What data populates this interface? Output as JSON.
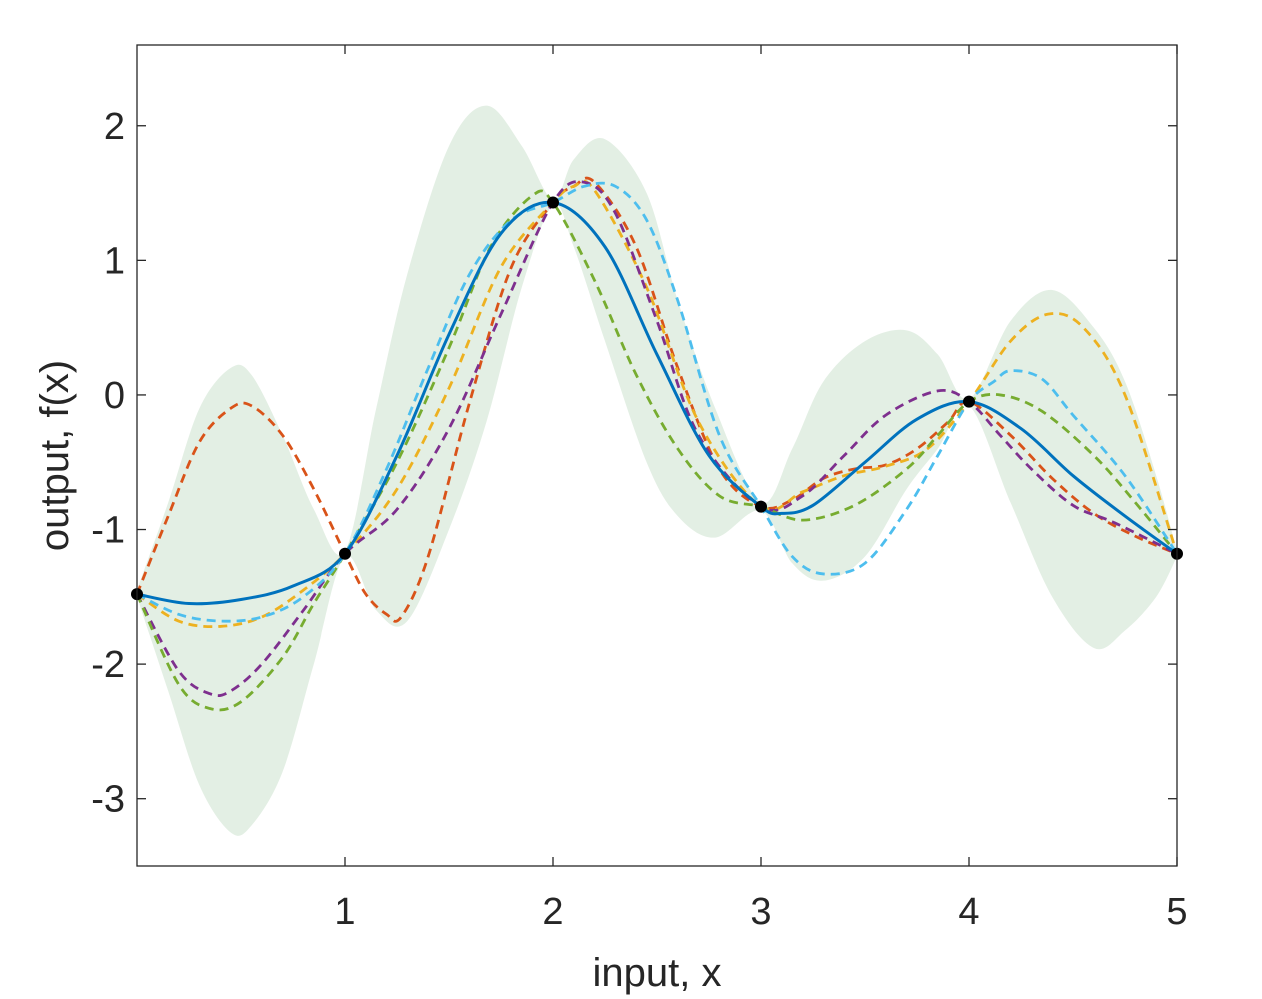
{
  "chart_data": {
    "type": "line",
    "title": "",
    "xlabel": "input, x",
    "ylabel": "output, f(x)",
    "xlim": [
      0,
      5
    ],
    "ylim": [
      -3.5,
      2.6
    ],
    "x_ticks": [
      1,
      2,
      3,
      4,
      5
    ],
    "y_ticks": [
      2,
      1,
      0,
      -1,
      -2,
      -3
    ],
    "grid": false,
    "legend": "none",
    "colors": {
      "band": "#e3efe4",
      "mean": "#0072bd",
      "sample_1": "#d95319",
      "sample_2": "#edb120",
      "sample_3": "#7e2f8e",
      "sample_4": "#77ac30",
      "sample_5": "#4dbeee",
      "observations": "#000000",
      "axes": "#262626"
    },
    "observations": {
      "x": [
        0,
        1,
        2,
        3,
        4,
        5
      ],
      "y": [
        -1.48,
        -1.18,
        1.43,
        -0.83,
        -0.05,
        -1.18
      ]
    },
    "confidence_band": {
      "x": [
        0,
        0.15,
        0.3,
        0.45,
        0.55,
        0.7,
        0.85,
        1.0,
        1.15,
        1.3,
        1.5,
        1.68,
        1.85,
        2.0,
        2.1,
        2.25,
        2.45,
        2.6,
        2.78,
        3.0,
        3.15,
        3.3,
        3.5,
        3.7,
        3.85,
        4.0,
        4.2,
        4.4,
        4.6,
        4.75,
        4.9,
        5.0
      ],
      "upper": [
        -1.45,
        -0.8,
        -0.1,
        0.2,
        0.15,
        -0.3,
        -0.85,
        -1.16,
        -0.1,
        0.9,
        1.85,
        2.15,
        1.85,
        1.45,
        1.75,
        1.9,
        1.5,
        0.7,
        -0.1,
        -0.8,
        -0.4,
        0.1,
        0.4,
        0.48,
        0.3,
        -0.03,
        0.55,
        0.78,
        0.5,
        0.1,
        -0.6,
        -1.16
      ],
      "lower": [
        -1.5,
        -2.2,
        -2.9,
        -3.25,
        -3.2,
        -2.8,
        -2.0,
        -1.2,
        -1.6,
        -1.68,
        -1.0,
        -0.2,
        0.8,
        1.41,
        1.1,
        0.4,
        -0.5,
        -0.9,
        -1.06,
        -0.86,
        -1.25,
        -1.38,
        -1.2,
        -0.7,
        -0.4,
        -0.08,
        -0.8,
        -1.5,
        -1.88,
        -1.75,
        -1.5,
        -1.2
      ]
    },
    "series": [
      {
        "style": "solid",
        "x": [
          0,
          0.25,
          0.5,
          0.75,
          1.0,
          1.25,
          1.5,
          1.75,
          2.0,
          2.25,
          2.5,
          2.75,
          3.0,
          3.1,
          3.25,
          3.5,
          3.75,
          4.0,
          4.25,
          4.5,
          4.75,
          5.0
        ],
        "y": [
          -1.48,
          -1.55,
          -1.52,
          -1.42,
          -1.18,
          -0.45,
          0.45,
          1.2,
          1.43,
          1.1,
          0.3,
          -0.45,
          -0.83,
          -0.88,
          -0.82,
          -0.5,
          -0.18,
          -0.05,
          -0.25,
          -0.6,
          -0.9,
          -1.18
        ]
      },
      {
        "style": "dashed",
        "x": [
          0,
          0.15,
          0.3,
          0.45,
          0.55,
          0.7,
          0.85,
          1.0,
          1.1,
          1.2,
          1.27,
          1.4,
          1.6,
          1.8,
          2.0,
          2.1,
          2.2,
          2.4,
          2.6,
          2.8,
          3.0,
          3.15,
          3.3,
          3.45,
          3.6,
          3.75,
          3.9,
          4.0,
          4.2,
          4.4,
          4.6,
          4.8,
          5.0
        ],
        "y": [
          -1.48,
          -0.9,
          -0.35,
          -0.1,
          -0.08,
          -0.3,
          -0.7,
          -1.18,
          -1.48,
          -1.63,
          -1.65,
          -1.2,
          -0.05,
          0.95,
          1.43,
          1.55,
          1.58,
          1.1,
          0.2,
          -0.55,
          -0.83,
          -0.78,
          -0.62,
          -0.55,
          -0.52,
          -0.4,
          -0.2,
          -0.05,
          -0.3,
          -0.62,
          -0.88,
          -1.05,
          -1.18
        ]
      },
      {
        "style": "dashed",
        "x": [
          0,
          0.2,
          0.4,
          0.6,
          0.8,
          1.0,
          1.25,
          1.5,
          1.75,
          2.0,
          2.1,
          2.2,
          2.45,
          2.7,
          3.0,
          3.2,
          3.4,
          3.6,
          3.8,
          4.0,
          4.2,
          4.38,
          4.55,
          4.75,
          5.0
        ],
        "y": [
          -1.48,
          -1.68,
          -1.72,
          -1.65,
          -1.45,
          -1.18,
          -0.7,
          0.05,
          0.95,
          1.43,
          1.55,
          1.52,
          0.8,
          -0.2,
          -0.83,
          -0.72,
          -0.6,
          -0.53,
          -0.4,
          -0.05,
          0.4,
          0.6,
          0.5,
          0.0,
          -1.18
        ]
      },
      {
        "style": "dashed",
        "x": [
          0,
          0.2,
          0.35,
          0.45,
          0.6,
          0.8,
          1.0,
          1.25,
          1.5,
          1.75,
          2.0,
          2.15,
          2.3,
          2.5,
          2.7,
          3.0,
          3.2,
          3.4,
          3.6,
          3.85,
          4.0,
          4.15,
          4.3,
          4.5,
          4.7,
          5.0
        ],
        "y": [
          -1.48,
          -2.05,
          -2.22,
          -2.2,
          -2.0,
          -1.6,
          -1.18,
          -0.85,
          -0.25,
          0.6,
          1.43,
          1.58,
          1.35,
          0.55,
          -0.3,
          -0.83,
          -0.75,
          -0.45,
          -0.15,
          0.03,
          -0.05,
          -0.3,
          -0.55,
          -0.82,
          -0.95,
          -1.18
        ]
      },
      {
        "style": "dashed",
        "x": [
          0,
          0.2,
          0.35,
          0.5,
          0.7,
          0.85,
          1.0,
          1.25,
          1.5,
          1.7,
          1.9,
          2.0,
          2.2,
          2.4,
          2.6,
          2.8,
          3.0,
          3.2,
          3.45,
          3.7,
          3.85,
          4.0,
          4.15,
          4.35,
          4.6,
          4.8,
          5.0
        ],
        "y": [
          -1.48,
          -2.15,
          -2.33,
          -2.28,
          -1.95,
          -1.55,
          -1.18,
          -0.5,
          0.35,
          1.1,
          1.48,
          1.43,
          0.85,
          0.15,
          -0.4,
          -0.75,
          -0.83,
          -0.93,
          -0.82,
          -0.55,
          -0.3,
          -0.05,
          0.0,
          -0.12,
          -0.45,
          -0.8,
          -1.18
        ]
      },
      {
        "style": "dashed",
        "x": [
          0,
          0.2,
          0.4,
          0.6,
          0.8,
          1.0,
          1.2,
          1.4,
          1.6,
          1.8,
          2.0,
          2.15,
          2.3,
          2.45,
          2.6,
          2.8,
          3.0,
          3.15,
          3.3,
          3.5,
          3.7,
          3.85,
          4.0,
          4.12,
          4.2,
          4.35,
          4.5,
          4.75,
          5.0
        ],
        "y": [
          -1.48,
          -1.63,
          -1.68,
          -1.65,
          -1.5,
          -1.18,
          -0.55,
          0.2,
          0.9,
          1.3,
          1.43,
          1.55,
          1.55,
          1.3,
          0.7,
          -0.3,
          -0.83,
          -1.2,
          -1.33,
          -1.25,
          -0.85,
          -0.45,
          -0.05,
          0.1,
          0.18,
          0.12,
          -0.15,
          -0.6,
          -1.18
        ]
      }
    ]
  }
}
